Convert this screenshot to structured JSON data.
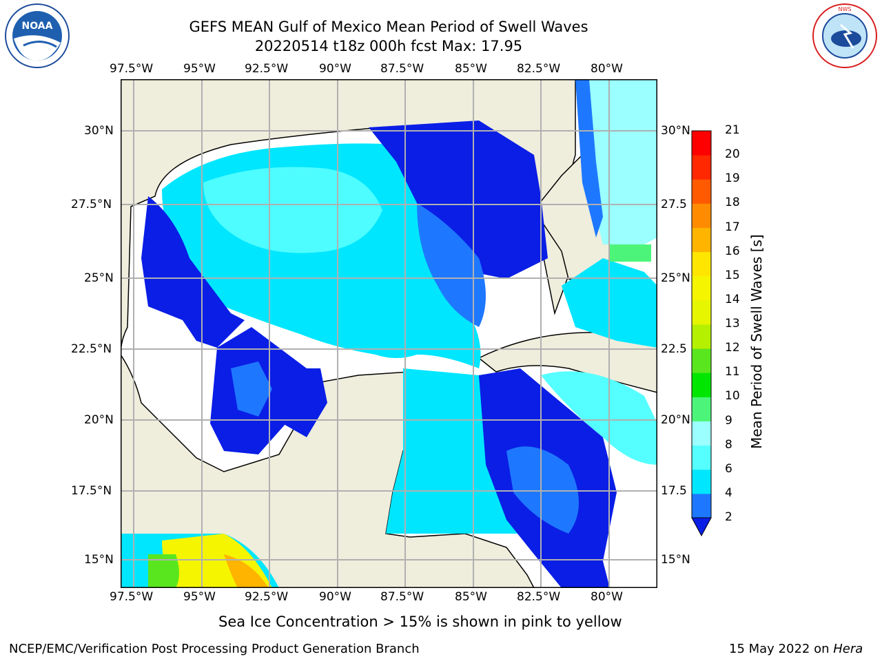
{
  "header": {
    "title_line1": "GEFS MEAN Gulf of Mexico Mean Period of Swell Waves",
    "title_line2": "20220514 t18z 000h fcst   Max: 17.95"
  },
  "logos": {
    "left": "noara-logo",
    "right": "national-weather-service-logo"
  },
  "map": {
    "lon_labels": [
      "97.5°W",
      "95°W",
      "92.5°W",
      "90°W",
      "87.5°W",
      "85°W",
      "82.5°W",
      "80°W"
    ],
    "lat_labels_left": [
      "30°N",
      "27.5°N",
      "25°N",
      "22.5°N",
      "20°N",
      "17.5°N",
      "15°N"
    ],
    "lat_labels_right": [
      "30°N",
      "27.5",
      "25°N",
      "22.5",
      "20°N",
      "17.5",
      "15°N"
    ],
    "land_color": "#efeddc",
    "ocean_color": "#ffffff",
    "grid_color": "#b0b0b0"
  },
  "colorbar": {
    "label": "Mean Period of Swell Waves [s]",
    "ticks": [
      "2",
      "4",
      "6",
      "8",
      "9",
      "10",
      "11",
      "12",
      "13",
      "14",
      "15",
      "16",
      "17",
      "18",
      "19",
      "20",
      "21"
    ],
    "colors": [
      "#0a1ee6",
      "#1e78ff",
      "#00e6ff",
      "#55ffff",
      "#9bffff",
      "#4cf57a",
      "#00e600",
      "#5ae61e",
      "#b4f000",
      "#e6f500",
      "#f5f500",
      "#ffe600",
      "#ffb400",
      "#ff8c00",
      "#ff5a00",
      "#ff2800",
      "#ff0000"
    ]
  },
  "caption": "Sea Ice Concentration > 15% is shown in pink to yellow",
  "footer": {
    "left": "NCEP/EMC/Verification Post Processing Product Generation Branch",
    "date": "15 May 2022 on ",
    "host": "Hera"
  }
}
